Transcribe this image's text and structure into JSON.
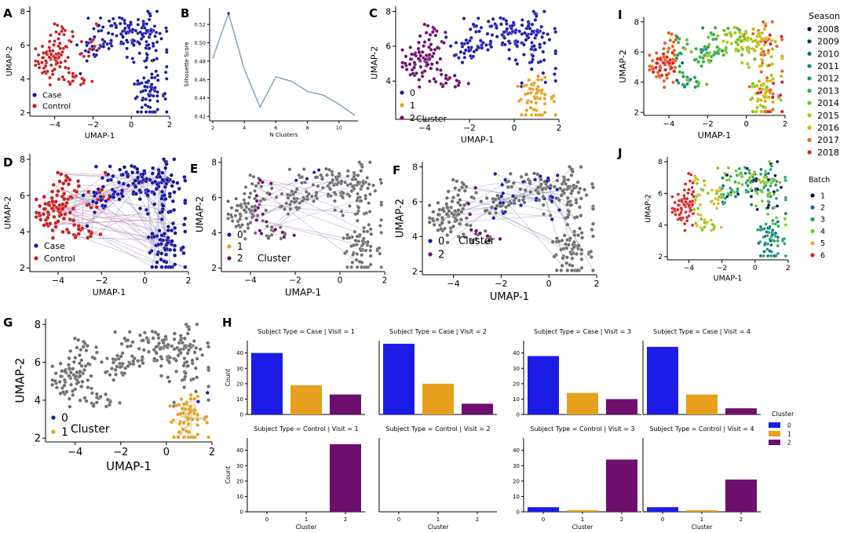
{
  "figure": {
    "panel_letters": [
      "A",
      "B",
      "C",
      "D",
      "E",
      "F",
      "G",
      "H",
      "I",
      "J"
    ]
  },
  "colors": {
    "case": "#1414a8",
    "control": "#c81e1e",
    "cluster0": "#1a1ab8",
    "cluster1": "#e6a01e",
    "cluster2": "#6e0f6e",
    "grey": "#6e6e6e",
    "silhouette_line": "#7fa0b4",
    "bar0": "#1c1ce6",
    "bar1": "#e6a01e",
    "bar2": "#6e0f6e"
  },
  "chart_data": [
    {
      "id": "A",
      "type": "scatter",
      "xlabel": "UMAP-1",
      "ylabel": "UMAP-2",
      "xlim": [
        -5.3,
        2.0
      ],
      "ylim": [
        1.8,
        8.3
      ],
      "xticks": [
        -4,
        -2,
        0,
        2
      ],
      "yticks": [
        2,
        4,
        6,
        8
      ],
      "legend": {
        "placement": "lower-left",
        "title": "",
        "entries": [
          "Case",
          "Control"
        ]
      },
      "series": [
        {
          "name": "Case",
          "note": "upper-right cloud (approximate)"
        },
        {
          "name": "Control",
          "note": "left cluster (approximate)"
        }
      ]
    },
    {
      "id": "B",
      "type": "line",
      "xlabel": "N Clusters",
      "ylabel": "Silhouette Score",
      "x": [
        2,
        3,
        4,
        5,
        6,
        7,
        8,
        9,
        10,
        11
      ],
      "values": [
        0.483,
        0.532,
        0.471,
        0.43,
        0.463,
        0.458,
        0.447,
        0.443,
        0.433,
        0.421
      ],
      "xlim": [
        1.8,
        11.2
      ],
      "ylim": [
        0.415,
        0.538
      ],
      "xticks": [
        2,
        4,
        6,
        8,
        10
      ],
      "yticks": [
        0.42,
        0.44,
        0.46,
        0.48,
        0.5,
        0.52
      ]
    },
    {
      "id": "C",
      "type": "scatter",
      "xlabel": "UMAP-1",
      "ylabel": "UMAP-2",
      "xlim": [
        -5.3,
        2.0
      ],
      "ylim": [
        1.8,
        8.3
      ],
      "xticks": [
        -4,
        -2,
        0,
        2
      ],
      "yticks": [
        4,
        6,
        8
      ],
      "legend": {
        "placement": "lower-left",
        "title": "Cluster",
        "entries": [
          "0",
          "1",
          "2"
        ]
      }
    },
    {
      "id": "D",
      "type": "scatter",
      "xlabel": "UMAP-1",
      "ylabel": "UMAP-2",
      "xlim": [
        -5.3,
        2.0
      ],
      "ylim": [
        1.8,
        8.3
      ],
      "xticks": [
        -4,
        -2,
        0,
        2
      ],
      "yticks": [
        2,
        4,
        6,
        8
      ],
      "legend": {
        "placement": "lower-left",
        "title": "",
        "entries": [
          "Case",
          "Control"
        ]
      },
      "note": "points connected across visits with thin lines"
    },
    {
      "id": "E",
      "type": "scatter",
      "xlabel": "UMAP-1",
      "ylabel": "UMAP-2",
      "xlim": [
        -5.3,
        2.0
      ],
      "ylim": [
        1.8,
        8.3
      ],
      "xticks": [
        -4,
        -2,
        0,
        2
      ],
      "yticks": [
        2,
        4,
        6,
        8
      ],
      "legend": {
        "placement": "lower-left",
        "title": "Cluster",
        "entries": [
          "0",
          "1",
          "2"
        ]
      }
    },
    {
      "id": "F",
      "type": "scatter",
      "xlabel": "UMAP-1",
      "ylabel": "UMAP-2",
      "xlim": [
        -5.3,
        2.0
      ],
      "ylim": [
        1.8,
        8.3
      ],
      "xticks": [
        -4,
        -2,
        0,
        2
      ],
      "yticks": [
        2,
        4,
        6,
        8
      ],
      "legend": {
        "placement": "lower-left",
        "title": "Cluster",
        "entries": [
          "0",
          "2"
        ]
      }
    },
    {
      "id": "G",
      "type": "scatter",
      "xlabel": "UMAP-1",
      "ylabel": "UMAP-2",
      "xlim": [
        -5.3,
        2.0
      ],
      "ylim": [
        1.8,
        8.3
      ],
      "xticks": [
        -4,
        -2,
        0,
        2
      ],
      "yticks": [
        2,
        4,
        6,
        8
      ],
      "legend": {
        "placement": "lower-left",
        "title": "Cluster",
        "entries": [
          "0",
          "1"
        ]
      }
    },
    {
      "id": "H",
      "type": "bar",
      "xlabel": "Cluster",
      "ylabel": "Count",
      "categories": [
        "0",
        "1",
        "2"
      ],
      "ylim": [
        0,
        48
      ],
      "yticks": [
        0,
        10,
        20,
        30,
        40
      ],
      "legend": {
        "title": "Cluster",
        "entries": [
          "0",
          "1",
          "2"
        ],
        "placement": "right"
      },
      "facets": [
        {
          "title": "Subject Type = Case | Visit = 1",
          "values": [
            40,
            19,
            13
          ]
        },
        {
          "title": "Subject Type = Case | Visit = 2",
          "values": [
            46,
            20,
            7
          ]
        },
        {
          "title": "Subject Type = Case | Visit = 3",
          "values": [
            38,
            14,
            10
          ]
        },
        {
          "title": "Subject Type = Case | Visit = 4",
          "values": [
            44,
            13,
            4
          ]
        },
        {
          "title": "Subject Type = Control | Visit = 1",
          "values": [
            0,
            0,
            44
          ]
        },
        {
          "title": "Subject Type = Control | Visit = 2",
          "values": [
            0,
            0,
            0
          ]
        },
        {
          "title": "Subject Type = Control | Visit = 3",
          "values": [
            3,
            1,
            34
          ]
        },
        {
          "title": "Subject Type = Control | Visit = 4",
          "values": [
            3,
            1,
            21
          ]
        }
      ]
    },
    {
      "id": "I",
      "type": "scatter",
      "xlabel": "UMAP-1",
      "ylabel": "UMAP-2",
      "xlim": [
        -5.3,
        2.0
      ],
      "ylim": [
        1.8,
        8.3
      ],
      "xticks": [
        -4,
        -2,
        0,
        2
      ],
      "yticks": [
        2,
        4,
        6,
        8
      ],
      "legend": {
        "placement": "right",
        "title": "Season",
        "entries": [
          "2008",
          "2009",
          "2010",
          "2011",
          "2012",
          "2013",
          "2014",
          "2015",
          "2016",
          "2017",
          "2018"
        ],
        "colors": [
          "#0a0a3c",
          "#0a3c5a",
          "#0a6e78",
          "#128c78",
          "#1e9b5a",
          "#37b43c",
          "#6ec31e",
          "#a5c814",
          "#d2b40f",
          "#e6641e",
          "#dc1e1e"
        ]
      }
    },
    {
      "id": "J",
      "type": "scatter",
      "xlabel": "UMAP-1",
      "ylabel": "UMAP-2",
      "xlim": [
        -5.3,
        2.0
      ],
      "ylim": [
        1.8,
        8.3
      ],
      "xticks": [
        -4,
        -2,
        0,
        2
      ],
      "yticks": [
        2,
        4,
        6,
        8
      ],
      "legend": {
        "placement": "right",
        "title": "Batch",
        "entries": [
          "1",
          "2",
          "3",
          "4",
          "5",
          "6"
        ],
        "colors": [
          "#0a0a50",
          "#0a6e8c",
          "#1ea55a",
          "#78c81e",
          "#e6b414",
          "#dc1e1e"
        ]
      }
    }
  ]
}
